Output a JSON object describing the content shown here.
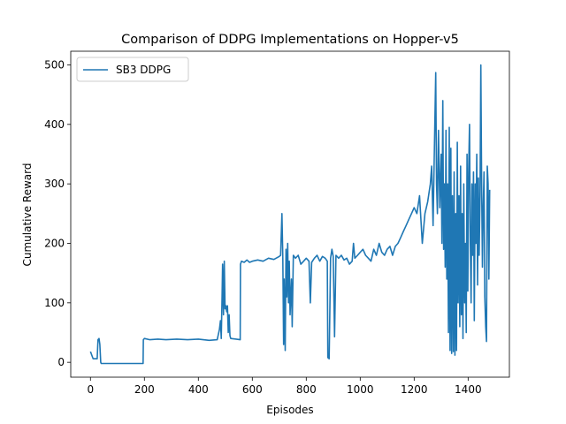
{
  "chart_data": {
    "type": "line",
    "title": "Comparison of DDPG Implementations on Hopper-v5",
    "xlabel": "Episodes",
    "ylabel": "Cumulative Reward",
    "xlim": [
      -73,
      1553
    ],
    "ylim": [
      -25,
      523
    ],
    "xticks": [
      0,
      200,
      400,
      600,
      800,
      1000,
      1200,
      1400
    ],
    "yticks": [
      0,
      100,
      200,
      300,
      400,
      500
    ],
    "grid": false,
    "legend_position": "top-left",
    "series": [
      {
        "name": "SB3 DDPG",
        "color": "#1f77b4",
        "points": [
          [
            0,
            18
          ],
          [
            5,
            12
          ],
          [
            10,
            6
          ],
          [
            20,
            6
          ],
          [
            25,
            6
          ],
          [
            28,
            38
          ],
          [
            32,
            40
          ],
          [
            35,
            30
          ],
          [
            38,
            0
          ],
          [
            40,
            -2
          ],
          [
            80,
            -2
          ],
          [
            120,
            -2
          ],
          [
            160,
            -2
          ],
          [
            195,
            -2
          ],
          [
            196,
            38
          ],
          [
            200,
            40
          ],
          [
            220,
            38
          ],
          [
            250,
            39
          ],
          [
            280,
            38
          ],
          [
            320,
            39
          ],
          [
            360,
            38
          ],
          [
            400,
            39
          ],
          [
            440,
            37
          ],
          [
            470,
            38
          ],
          [
            478,
            55
          ],
          [
            482,
            70
          ],
          [
            485,
            40
          ],
          [
            488,
            110
          ],
          [
            490,
            165
          ],
          [
            493,
            80
          ],
          [
            496,
            170
          ],
          [
            499,
            90
          ],
          [
            502,
            95
          ],
          [
            505,
            85
          ],
          [
            508,
            95
          ],
          [
            511,
            50
          ],
          [
            514,
            80
          ],
          [
            517,
            45
          ],
          [
            520,
            40
          ],
          [
            540,
            39
          ],
          [
            555,
            38
          ],
          [
            556,
            165
          ],
          [
            560,
            170
          ],
          [
            570,
            168
          ],
          [
            580,
            172
          ],
          [
            590,
            168
          ],
          [
            600,
            170
          ],
          [
            620,
            172
          ],
          [
            640,
            170
          ],
          [
            660,
            175
          ],
          [
            680,
            173
          ],
          [
            700,
            178
          ],
          [
            705,
            180
          ],
          [
            710,
            250
          ],
          [
            713,
            175
          ],
          [
            716,
            30
          ],
          [
            718,
            140
          ],
          [
            722,
            20
          ],
          [
            725,
            190
          ],
          [
            728,
            110
          ],
          [
            731,
            200
          ],
          [
            734,
            100
          ],
          [
            737,
            170
          ],
          [
            740,
            80
          ],
          [
            745,
            140
          ],
          [
            748,
            60
          ],
          [
            752,
            180
          ],
          [
            760,
            175
          ],
          [
            770,
            180
          ],
          [
            780,
            165
          ],
          [
            790,
            170
          ],
          [
            800,
            175
          ],
          [
            810,
            170
          ],
          [
            815,
            100
          ],
          [
            820,
            168
          ],
          [
            830,
            175
          ],
          [
            840,
            180
          ],
          [
            850,
            170
          ],
          [
            860,
            178
          ],
          [
            870,
            175
          ],
          [
            878,
            170
          ],
          [
            880,
            8
          ],
          [
            885,
            6
          ],
          [
            890,
            175
          ],
          [
            895,
            190
          ],
          [
            900,
            178
          ],
          [
            905,
            43
          ],
          [
            910,
            180
          ],
          [
            920,
            175
          ],
          [
            930,
            180
          ],
          [
            940,
            172
          ],
          [
            950,
            175
          ],
          [
            960,
            165
          ],
          [
            970,
            170
          ],
          [
            975,
            200
          ],
          [
            980,
            175
          ],
          [
            990,
            180
          ],
          [
            1000,
            185
          ],
          [
            1010,
            190
          ],
          [
            1020,
            180
          ],
          [
            1030,
            175
          ],
          [
            1040,
            170
          ],
          [
            1050,
            190
          ],
          [
            1060,
            180
          ],
          [
            1070,
            200
          ],
          [
            1080,
            185
          ],
          [
            1090,
            180
          ],
          [
            1100,
            190
          ],
          [
            1110,
            195
          ],
          [
            1120,
            180
          ],
          [
            1130,
            195
          ],
          [
            1140,
            200
          ],
          [
            1150,
            210
          ],
          [
            1160,
            220
          ],
          [
            1170,
            230
          ],
          [
            1180,
            240
          ],
          [
            1190,
            250
          ],
          [
            1200,
            260
          ],
          [
            1210,
            250
          ],
          [
            1220,
            280
          ],
          [
            1230,
            200
          ],
          [
            1240,
            250
          ],
          [
            1250,
            270
          ],
          [
            1260,
            300
          ],
          [
            1265,
            330
          ],
          [
            1270,
            230
          ],
          [
            1275,
            360
          ],
          [
            1280,
            487
          ],
          [
            1283,
            300
          ],
          [
            1286,
            250
          ],
          [
            1290,
            390
          ],
          [
            1295,
            260
          ],
          [
            1300,
            350
          ],
          [
            1303,
            200
          ],
          [
            1306,
            440
          ],
          [
            1309,
            190
          ],
          [
            1312,
            300
          ],
          [
            1315,
            160
          ],
          [
            1318,
            390
          ],
          [
            1321,
            140
          ],
          [
            1324,
            300
          ],
          [
            1327,
            50
          ],
          [
            1330,
            395
          ],
          [
            1333,
            20
          ],
          [
            1336,
            360
          ],
          [
            1339,
            15
          ],
          [
            1342,
            280
          ],
          [
            1345,
            18
          ],
          [
            1348,
            320
          ],
          [
            1351,
            12
          ],
          [
            1354,
            250
          ],
          [
            1357,
            20
          ],
          [
            1360,
            370
          ],
          [
            1363,
            100
          ],
          [
            1366,
            280
          ],
          [
            1369,
            60
          ],
          [
            1372,
            330
          ],
          [
            1375,
            80
          ],
          [
            1378,
            250
          ],
          [
            1381,
            40
          ],
          [
            1384,
            300
          ],
          [
            1387,
            100
          ],
          [
            1390,
            200
          ],
          [
            1393,
            50
          ],
          [
            1396,
            350
          ],
          [
            1399,
            120
          ],
          [
            1402,
            320
          ],
          [
            1405,
            400
          ],
          [
            1408,
            200
          ],
          [
            1411,
            100
          ],
          [
            1414,
            300
          ],
          [
            1417,
            180
          ],
          [
            1420,
            320
          ],
          [
            1423,
            70
          ],
          [
            1426,
            300
          ],
          [
            1429,
            200
          ],
          [
            1432,
            350
          ],
          [
            1435,
            130
          ],
          [
            1438,
            310
          ],
          [
            1441,
            180
          ],
          [
            1444,
            280
          ],
          [
            1447,
            500
          ],
          [
            1450,
            300
          ],
          [
            1453,
            160
          ],
          [
            1456,
            260
          ],
          [
            1459,
            320
          ],
          [
            1462,
            110
          ],
          [
            1465,
            60
          ],
          [
            1468,
            35
          ],
          [
            1471,
            330
          ],
          [
            1474,
            300
          ],
          [
            1477,
            140
          ],
          [
            1480,
            290
          ]
        ]
      }
    ]
  }
}
